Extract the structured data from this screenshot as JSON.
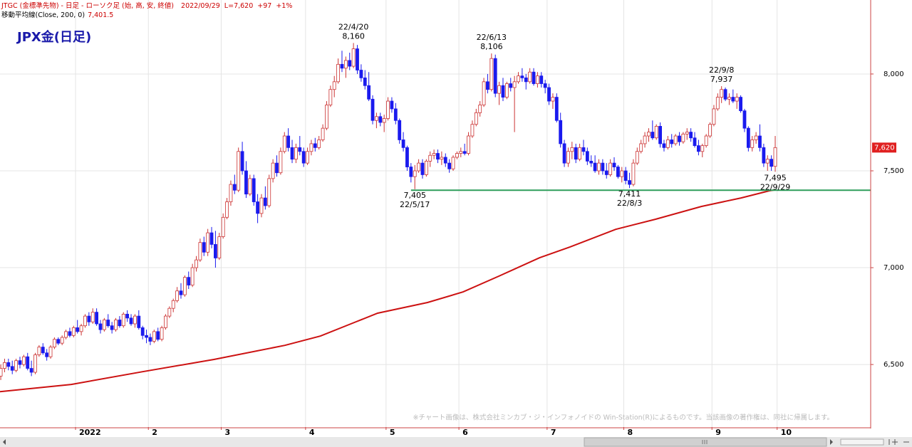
{
  "header": {
    "prefix": "JTGC (金標準先物) - 日足 - ローソク足 (始, 高, 安, 終値)",
    "date": "2022/09/29",
    "last_prefix": "L=",
    "change": "+97",
    "change_pct": "+1%"
  },
  "chart_data": {
    "type": "candlestick",
    "title": "JPX金(日足)",
    "up_color": "#cc3333",
    "down_color": "#1a1aee",
    "grid": true,
    "xlim": [
      -0.2,
      226.9
    ],
    "ylim": [
      6177,
      8382
    ],
    "xticks": [
      {
        "value": 19.5,
        "label": "2022"
      },
      {
        "value": 38.5,
        "label": "2"
      },
      {
        "value": 57.5,
        "label": "3"
      },
      {
        "value": 79.5,
        "label": "4"
      },
      {
        "value": 100.5,
        "label": "5"
      },
      {
        "value": 119.5,
        "label": "6"
      },
      {
        "value": 142.5,
        "label": "7"
      },
      {
        "value": 162.5,
        "label": "8"
      },
      {
        "value": 185.5,
        "label": "9"
      },
      {
        "value": 202.5,
        "label": "10"
      }
    ],
    "yticks": [
      {
        "value": 6500,
        "label": "6,500"
      },
      {
        "value": 7000,
        "label": "7,000"
      },
      {
        "value": 7500,
        "label": "7,500"
      },
      {
        "value": 8000,
        "label": "8,000"
      }
    ],
    "ohlc": [
      [
        6440,
        6500,
        6420,
        6480
      ],
      [
        6480,
        6530,
        6460,
        6510
      ],
      [
        6510,
        6530,
        6470,
        6490
      ],
      [
        6490,
        6520,
        6450,
        6470
      ],
      [
        6470,
        6530,
        6460,
        6520
      ],
      [
        6520,
        6540,
        6480,
        6500
      ],
      [
        6500,
        6550,
        6490,
        6540
      ],
      [
        6540,
        6560,
        6470,
        6480
      ],
      [
        6480,
        6520,
        6440,
        6460
      ],
      [
        6460,
        6560,
        6450,
        6550
      ],
      [
        6550,
        6600,
        6540,
        6590
      ],
      [
        6590,
        6610,
        6550,
        6560
      ],
      [
        6560,
        6580,
        6520,
        6540
      ],
      [
        6540,
        6600,
        6530,
        6590
      ],
      [
        6590,
        6640,
        6580,
        6630
      ],
      [
        6630,
        6640,
        6600,
        6610
      ],
      [
        6610,
        6650,
        6600,
        6640
      ],
      [
        6640,
        6680,
        6630,
        6670
      ],
      [
        6670,
        6690,
        6640,
        6650
      ],
      [
        6650,
        6700,
        6640,
        6690
      ],
      [
        6690,
        6730,
        6660,
        6670
      ],
      [
        6670,
        6710,
        6650,
        6700
      ],
      [
        6700,
        6760,
        6690,
        6750
      ],
      [
        6750,
        6770,
        6700,
        6720
      ],
      [
        6720,
        6790,
        6710,
        6770
      ],
      [
        6770,
        6790,
        6700,
        6710
      ],
      [
        6710,
        6730,
        6660,
        6680
      ],
      [
        6680,
        6740,
        6670,
        6730
      ],
      [
        6730,
        6760,
        6690,
        6700
      ],
      [
        6700,
        6720,
        6660,
        6680
      ],
      [
        6680,
        6740,
        6670,
        6730
      ],
      [
        6730,
        6750,
        6690,
        6700
      ],
      [
        6700,
        6770,
        6690,
        6760
      ],
      [
        6760,
        6780,
        6720,
        6740
      ],
      [
        6740,
        6760,
        6700,
        6710
      ],
      [
        6710,
        6760,
        6690,
        6750
      ],
      [
        6750,
        6780,
        6680,
        6690
      ],
      [
        6690,
        6700,
        6630,
        6650
      ],
      [
        6650,
        6680,
        6610,
        6640
      ],
      [
        6640,
        6660,
        6600,
        6620
      ],
      [
        6620,
        6680,
        6610,
        6670
      ],
      [
        6670,
        6690,
        6620,
        6630
      ],
      [
        6630,
        6700,
        6620,
        6690
      ],
      [
        6690,
        6760,
        6680,
        6750
      ],
      [
        6750,
        6800,
        6740,
        6790
      ],
      [
        6790,
        6840,
        6770,
        6830
      ],
      [
        6830,
        6900,
        6820,
        6880
      ],
      [
        6880,
        6920,
        6840,
        6860
      ],
      [
        6860,
        6960,
        6850,
        6950
      ],
      [
        6950,
        6980,
        6890,
        6910
      ],
      [
        6910,
        7020,
        6900,
        7000
      ],
      [
        7000,
        7060,
        6980,
        7040
      ],
      [
        7040,
        7150,
        7030,
        7130
      ],
      [
        7130,
        7160,
        7060,
        7080
      ],
      [
        7080,
        7200,
        7060,
        7180
      ],
      [
        7180,
        7210,
        7100,
        7120
      ],
      [
        7120,
        7190,
        7000,
        7050
      ],
      [
        7050,
        7180,
        7040,
        7160
      ],
      [
        7160,
        7280,
        7150,
        7260
      ],
      [
        7260,
        7360,
        7250,
        7340
      ],
      [
        7340,
        7450,
        7320,
        7430
      ],
      [
        7430,
        7480,
        7380,
        7400
      ],
      [
        7400,
        7620,
        7390,
        7600
      ],
      [
        7600,
        7650,
        7480,
        7500
      ],
      [
        7500,
        7550,
        7360,
        7380
      ],
      [
        7380,
        7480,
        7370,
        7460
      ],
      [
        7460,
        7480,
        7320,
        7340
      ],
      [
        7340,
        7380,
        7230,
        7280
      ],
      [
        7280,
        7380,
        7260,
        7360
      ],
      [
        7360,
        7420,
        7300,
        7320
      ],
      [
        7320,
        7480,
        7310,
        7460
      ],
      [
        7460,
        7560,
        7440,
        7540
      ],
      [
        7540,
        7580,
        7470,
        7490
      ],
      [
        7490,
        7620,
        7480,
        7600
      ],
      [
        7600,
        7700,
        7590,
        7680
      ],
      [
        7680,
        7720,
        7600,
        7620
      ],
      [
        7620,
        7660,
        7540,
        7560
      ],
      [
        7560,
        7640,
        7540,
        7620
      ],
      [
        7620,
        7680,
        7580,
        7600
      ],
      [
        7600,
        7620,
        7520,
        7540
      ],
      [
        7540,
        7620,
        7530,
        7600
      ],
      [
        7600,
        7660,
        7580,
        7640
      ],
      [
        7640,
        7670,
        7600,
        7620
      ],
      [
        7620,
        7680,
        7610,
        7660
      ],
      [
        7660,
        7740,
        7650,
        7720
      ],
      [
        7720,
        7860,
        7710,
        7840
      ],
      [
        7840,
        7940,
        7830,
        7920
      ],
      [
        7920,
        7990,
        7880,
        7960
      ],
      [
        7960,
        8080,
        7950,
        8050
      ],
      [
        8050,
        8120,
        8010,
        8030
      ],
      [
        8030,
        8090,
        7980,
        8070
      ],
      [
        8070,
        8110,
        8020,
        8040
      ],
      [
        8040,
        8160,
        8030,
        8130
      ],
      [
        8130,
        8150,
        8000,
        8020
      ],
      [
        8020,
        8050,
        7960,
        7980
      ],
      [
        7980,
        8020,
        7920,
        7940
      ],
      [
        7940,
        8010,
        7860,
        7870
      ],
      [
        7870,
        7890,
        7740,
        7760
      ],
      [
        7760,
        7800,
        7720,
        7780
      ],
      [
        7780,
        7800,
        7730,
        7750
      ],
      [
        7750,
        7790,
        7700,
        7770
      ],
      [
        7770,
        7880,
        7760,
        7860
      ],
      [
        7860,
        7880,
        7800,
        7820
      ],
      [
        7820,
        7850,
        7740,
        7760
      ],
      [
        7760,
        7770,
        7640,
        7660
      ],
      [
        7660,
        7700,
        7600,
        7620
      ],
      [
        7620,
        7630,
        7500,
        7520
      ],
      [
        7520,
        7540,
        7440,
        7470
      ],
      [
        7470,
        7530,
        7405,
        7500
      ],
      [
        7500,
        7560,
        7490,
        7540
      ],
      [
        7540,
        7560,
        7460,
        7480
      ],
      [
        7480,
        7560,
        7470,
        7550
      ],
      [
        7550,
        7600,
        7520,
        7580
      ],
      [
        7580,
        7610,
        7560,
        7590
      ],
      [
        7590,
        7610,
        7540,
        7560
      ],
      [
        7560,
        7600,
        7530,
        7570
      ],
      [
        7570,
        7590,
        7520,
        7540
      ],
      [
        7540,
        7560,
        7490,
        7510
      ],
      [
        7510,
        7580,
        7500,
        7570
      ],
      [
        7570,
        7600,
        7560,
        7590
      ],
      [
        7590,
        7620,
        7570,
        7600
      ],
      [
        7600,
        7640,
        7580,
        7590
      ],
      [
        7590,
        7700,
        7580,
        7680
      ],
      [
        7680,
        7760,
        7670,
        7740
      ],
      [
        7740,
        7820,
        7730,
        7800
      ],
      [
        7800,
        7860,
        7780,
        7840
      ],
      [
        7840,
        7980,
        7830,
        7960
      ],
      [
        7960,
        8000,
        7900,
        7920
      ],
      [
        7920,
        8106,
        7910,
        8080
      ],
      [
        8080,
        8100,
        7880,
        7900
      ],
      [
        7900,
        7960,
        7840,
        7940
      ],
      [
        7940,
        7980,
        7860,
        7880
      ],
      [
        7880,
        7960,
        7870,
        7950
      ],
      [
        7950,
        7980,
        7910,
        7930
      ],
      [
        7930,
        7990,
        7700,
        7960
      ],
      [
        7960,
        8010,
        7950,
        7990
      ],
      [
        7990,
        8030,
        7960,
        7980
      ],
      [
        7980,
        8000,
        7920,
        7960
      ],
      [
        7960,
        8030,
        7950,
        8010
      ],
      [
        8010,
        8030,
        7940,
        7950
      ],
      [
        7950,
        8010,
        7930,
        7990
      ],
      [
        7990,
        8010,
        7930,
        7950
      ],
      [
        7950,
        7970,
        7900,
        7930
      ],
      [
        7930,
        7950,
        7840,
        7860
      ],
      [
        7860,
        7900,
        7820,
        7880
      ],
      [
        7880,
        7900,
        7750,
        7760
      ],
      [
        7760,
        7800,
        7620,
        7640
      ],
      [
        7640,
        7660,
        7520,
        7540
      ],
      [
        7540,
        7620,
        7520,
        7600
      ],
      [
        7600,
        7650,
        7560,
        7620
      ],
      [
        7620,
        7640,
        7540,
        7560
      ],
      [
        7560,
        7640,
        7550,
        7620
      ],
      [
        7620,
        7660,
        7580,
        7600
      ],
      [
        7600,
        7620,
        7530,
        7550
      ],
      [
        7550,
        7580,
        7520,
        7540
      ],
      [
        7540,
        7580,
        7490,
        7500
      ],
      [
        7500,
        7560,
        7480,
        7540
      ],
      [
        7540,
        7560,
        7480,
        7500
      ],
      [
        7500,
        7540,
        7460,
        7480
      ],
      [
        7480,
        7560,
        7470,
        7540
      ],
      [
        7540,
        7570,
        7500,
        7520
      ],
      [
        7520,
        7530,
        7460,
        7470
      ],
      [
        7470,
        7520,
        7440,
        7500
      ],
      [
        7500,
        7520,
        7430,
        7450
      ],
      [
        7450,
        7490,
        7411,
        7430
      ],
      [
        7430,
        7560,
        7420,
        7540
      ],
      [
        7540,
        7620,
        7530,
        7600
      ],
      [
        7600,
        7660,
        7590,
        7640
      ],
      [
        7640,
        7700,
        7620,
        7680
      ],
      [
        7680,
        7720,
        7650,
        7700
      ],
      [
        7700,
        7760,
        7660,
        7670
      ],
      [
        7670,
        7740,
        7660,
        7730
      ],
      [
        7730,
        7750,
        7620,
        7640
      ],
      [
        7640,
        7660,
        7600,
        7620
      ],
      [
        7620,
        7680,
        7610,
        7660
      ],
      [
        7660,
        7690,
        7620,
        7640
      ],
      [
        7640,
        7690,
        7630,
        7680
      ],
      [
        7680,
        7700,
        7630,
        7650
      ],
      [
        7650,
        7700,
        7640,
        7690
      ],
      [
        7690,
        7720,
        7660,
        7700
      ],
      [
        7700,
        7720,
        7650,
        7670
      ],
      [
        7670,
        7700,
        7620,
        7630
      ],
      [
        7630,
        7660,
        7580,
        7600
      ],
      [
        7600,
        7640,
        7570,
        7630
      ],
      [
        7630,
        7690,
        7620,
        7680
      ],
      [
        7680,
        7750,
        7670,
        7740
      ],
      [
        7740,
        7840,
        7730,
        7820
      ],
      [
        7820,
        7900,
        7810,
        7880
      ],
      [
        7880,
        7937,
        7850,
        7920
      ],
      [
        7920,
        7930,
        7860,
        7870
      ],
      [
        7870,
        7900,
        7840,
        7880
      ],
      [
        7880,
        7920,
        7850,
        7860
      ],
      [
        7860,
        7900,
        7820,
        7880
      ],
      [
        7880,
        7890,
        7800,
        7810
      ],
      [
        7810,
        7820,
        7700,
        7720
      ],
      [
        7720,
        7730,
        7600,
        7620
      ],
      [
        7620,
        7680,
        7600,
        7660
      ],
      [
        7660,
        7700,
        7640,
        7680
      ],
      [
        7680,
        7740,
        7600,
        7620
      ],
      [
        7620,
        7640,
        7520,
        7540
      ],
      [
        7540,
        7580,
        7500,
        7560
      ],
      [
        7560,
        7580,
        7500,
        7523
      ],
      [
        7523,
        7680,
        7495,
        7620
      ]
    ],
    "ma": {
      "name": "移動平均線(Close, 200, 0)",
      "color": "#cc1111",
      "last_label": "7,401.5",
      "x": [
        -0.2,
        18.4,
        37,
        55.6,
        74.1,
        83.4,
        92.7,
        98.3,
        111.3,
        120.6,
        129.9,
        140.5,
        148.5,
        160.4,
        170.8,
        182.7,
        193.1,
        200.5,
        202
      ],
      "values": [
        6360,
        6397,
        6463,
        6526,
        6599,
        6647,
        6721,
        6765,
        6820,
        6875,
        6956,
        7051,
        7107,
        7198,
        7250,
        7316,
        7360,
        7397,
        7401.5
      ]
    },
    "hline": {
      "value": 7400,
      "x_from": 107,
      "color": "#2e9e5b"
    },
    "last_price": {
      "value": 7620,
      "label": "7,620",
      "color": "#e02020"
    },
    "annotations": [
      {
        "x": 92,
        "date": "22/4/20",
        "value": 8160,
        "label": "8,160",
        "side": "above"
      },
      {
        "x": 128,
        "date": "22/6/13",
        "value": 8106,
        "label": "8,106",
        "side": "above"
      },
      {
        "x": 188,
        "date": "22/9/8",
        "value": 7937,
        "label": "7,937",
        "side": "above"
      },
      {
        "x": 108,
        "date": "22/5/17",
        "value": 7405,
        "label": "7,405",
        "side": "below"
      },
      {
        "x": 164,
        "date": "22/8/3",
        "value": 7411,
        "label": "7,411",
        "side": "below"
      },
      {
        "x": 202,
        "date": "22/9/29",
        "value": 7495,
        "label": "7,495",
        "side": "below"
      }
    ],
    "note": "※チャート画像は、株式会社ミンカブ・ジ・インフォノイドの Win-Station(R)によるものです。当該画像の著作権は、同社に帰属します。"
  }
}
